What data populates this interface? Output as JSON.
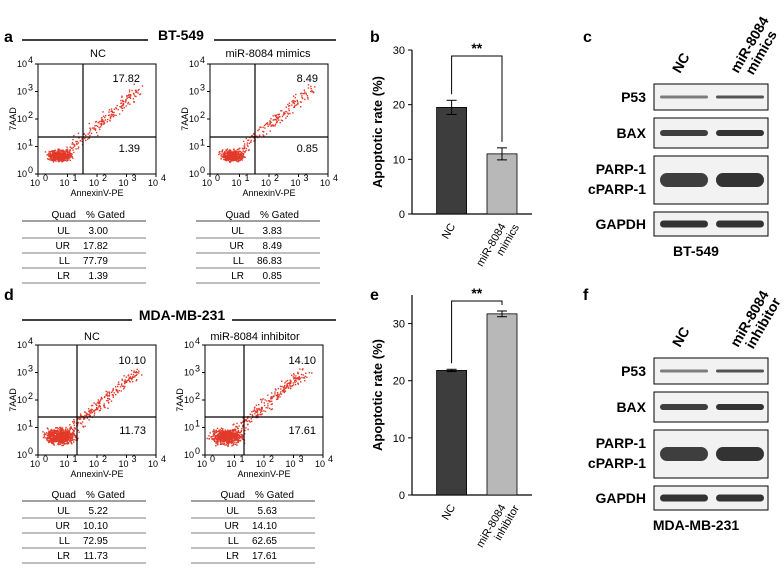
{
  "panels": {
    "a": {
      "letter": "a",
      "cell_line": "BT-549",
      "plots": [
        {
          "label": "NC",
          "UR": "17.82",
          "LR": "1.39",
          "table": {
            "header": [
              "Quad",
              "% Gated"
            ],
            "rows": [
              [
                "UL",
                "3.00"
              ],
              [
                "UR",
                "17.82"
              ],
              [
                "LL",
                "77.79"
              ],
              [
                "LR",
                "1.39"
              ]
            ]
          }
        },
        {
          "label": "miR-8084 mimics",
          "UR": "8.49",
          "LR": "0.85",
          "table": {
            "header": [
              "Quad",
              "% Gated"
            ],
            "rows": [
              [
                "UL",
                "3.83"
              ],
              [
                "UR",
                "8.49"
              ],
              [
                "LL",
                "86.83"
              ],
              [
                "LR",
                "0.85"
              ]
            ]
          }
        }
      ]
    },
    "d": {
      "letter": "d",
      "cell_line": "MDA-MB-231",
      "plots": [
        {
          "label": "NC",
          "UR": "10.10",
          "LR": "11.73",
          "table": {
            "header": [
              "Quad",
              "% Gated"
            ],
            "rows": [
              [
                "UL",
                "5.22"
              ],
              [
                "UR",
                "10.10"
              ],
              [
                "LL",
                "72.95"
              ],
              [
                "LR",
                "11.73"
              ]
            ]
          }
        },
        {
          "label": "miR-8084 inhibitor",
          "UR": "14.10",
          "LR": "17.61",
          "table": {
            "header": [
              "Quad",
              "% Gated"
            ],
            "rows": [
              [
                "UL",
                "5.63"
              ],
              [
                "UR",
                "14.10"
              ],
              [
                "LL",
                "62.65"
              ],
              [
                "LR",
                "17.61"
              ]
            ]
          }
        }
      ]
    },
    "b": {
      "letter": "b",
      "significance": "**"
    },
    "e": {
      "letter": "e",
      "significance": "**"
    },
    "c": {
      "letter": "c",
      "cell_line": "BT-549",
      "columns": [
        "NC",
        "miR-8084 mimics"
      ],
      "rows": [
        "P53",
        "BAX",
        "PARP-1",
        "cPARP-1",
        "GAPDH"
      ]
    },
    "f": {
      "letter": "f",
      "cell_line": "MDA-MB-231",
      "columns": [
        "NC",
        "miR-8084 inhibitor"
      ],
      "rows": [
        "P53",
        "BAX",
        "PARP-1",
        "cPARP-1",
        "GAPDH"
      ]
    }
  },
  "flow_axes": {
    "x_label": "AnnexinV-PE",
    "y_label": "7AAD",
    "ticks": [
      "10",
      "10",
      "10",
      "10",
      "10"
    ],
    "tick_exponents": [
      "0",
      "1",
      "2",
      "3",
      "4"
    ]
  },
  "chart_data": [
    {
      "type": "bar",
      "panel": "b",
      "categories": [
        "NC",
        "miR-8084 mimics"
      ],
      "values": [
        19.5,
        11.0
      ],
      "errors": [
        1.3,
        1.1
      ],
      "ylabel": "Apoptotic rate (%)",
      "ylim": [
        0,
        30
      ],
      "yticks": [
        0,
        10,
        20,
        30
      ],
      "colors": [
        "#3d3d3d",
        "#b8b8b8"
      ]
    },
    {
      "type": "bar",
      "panel": "e",
      "categories": [
        "NC",
        "miR-8084 inhibitor"
      ],
      "values": [
        21.8,
        31.7
      ],
      "errors": [
        0.2,
        0.5
      ],
      "ylabel": "Apoptotic rate (%)",
      "ylim": [
        0,
        35
      ],
      "yticks": [
        0,
        10,
        20,
        30
      ],
      "colors": [
        "#3d3d3d",
        "#b8b8b8"
      ]
    }
  ]
}
